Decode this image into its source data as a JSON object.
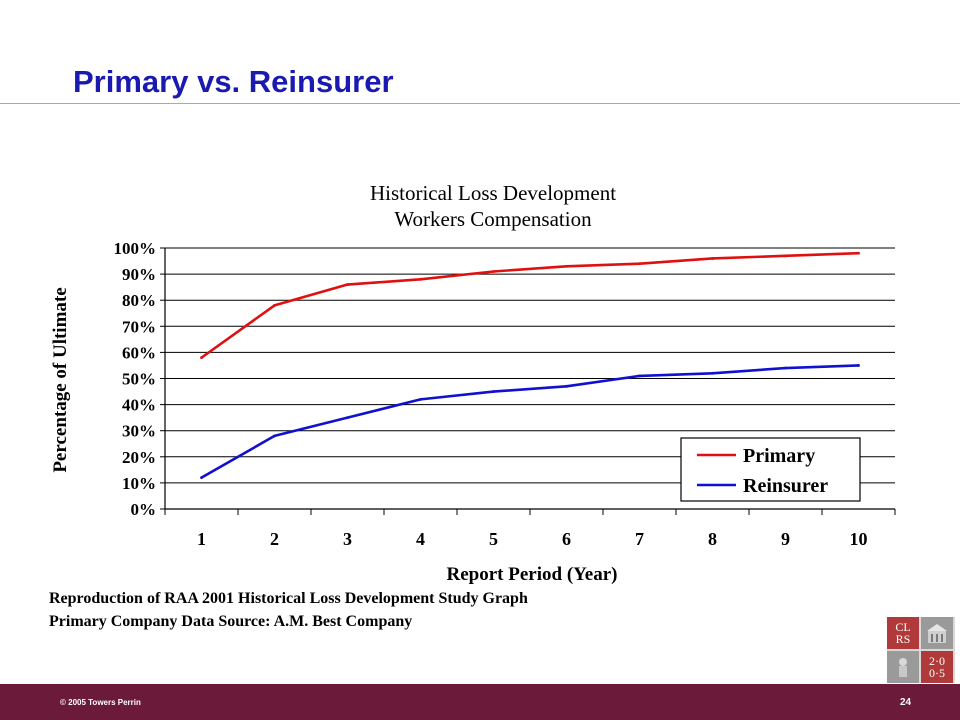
{
  "slide": {
    "title": "Primary vs. Reinsurer",
    "caption_line1": "Reproduction of RAA 2001 Historical Loss Development Study Graph",
    "caption_line2": "Primary Company Data Source:  A.M. Best Company"
  },
  "logo": {
    "top_left": "CL RS",
    "bottom_right": "2·0 0·5"
  },
  "footer": {
    "copyright": "© 2005 Towers Perrin",
    "page_number": "24"
  },
  "colors": {
    "title": "#1a1ab0",
    "footer_bg": "#6b1a3a",
    "primary_series": "#e01010",
    "reinsurer_series": "#1010d0"
  },
  "chart_data": {
    "type": "line",
    "title": "Historical Loss Development",
    "subtitle": "Workers Compensation",
    "xlabel": "Report Period (Year)",
    "ylabel": "Percentage of Ultimate",
    "x": [
      1,
      2,
      3,
      4,
      5,
      6,
      7,
      8,
      9,
      10
    ],
    "ylim": [
      0,
      100
    ],
    "yticks": [
      "0%",
      "10%",
      "20%",
      "30%",
      "40%",
      "50%",
      "60%",
      "70%",
      "80%",
      "90%",
      "100%"
    ],
    "grid": true,
    "legend": "bottom-right",
    "series": [
      {
        "name": "Primary",
        "color": "#e01010",
        "values": [
          58,
          78,
          86,
          88,
          91,
          93,
          94,
          96,
          97,
          98
        ]
      },
      {
        "name": "Reinsurer",
        "color": "#1010d0",
        "values": [
          12,
          28,
          35,
          42,
          45,
          47,
          51,
          52,
          54,
          55
        ]
      }
    ]
  }
}
